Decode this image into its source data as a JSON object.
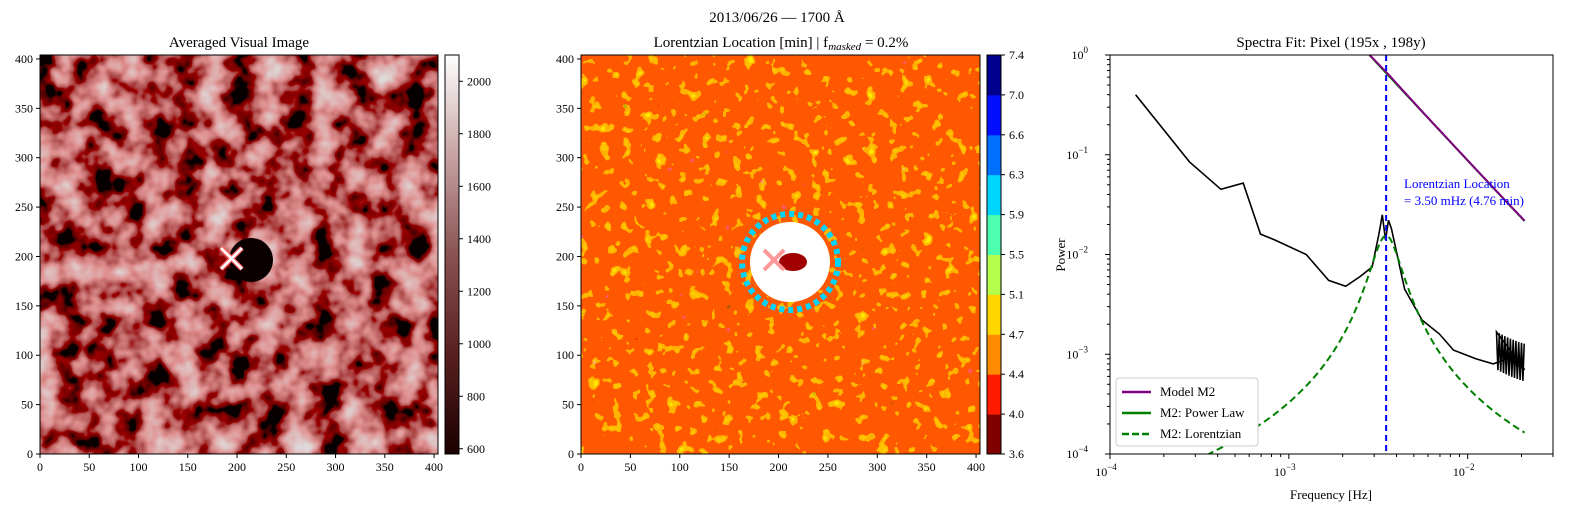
{
  "figure_title": "2013/06/26 — 1700 Å",
  "chart_data": [
    {
      "type": "heatmap",
      "title": "Averaged Visual Image",
      "x_ticks": [
        "0",
        "50",
        "100",
        "150",
        "200",
        "250",
        "300",
        "350",
        "400"
      ],
      "y_ticks": [
        "0",
        "50",
        "100",
        "150",
        "200",
        "250",
        "300",
        "350",
        "400"
      ],
      "xlim": [
        0,
        404
      ],
      "ylim": [
        0,
        404
      ],
      "colorbar": {
        "ticks": [
          "600",
          "800",
          "1000",
          "1200",
          "1400",
          "1600",
          "1800",
          "2000"
        ],
        "range": [
          580,
          2100
        ],
        "colors": [
          "#1a0000",
          "#5a1f1f",
          "#8a5252",
          "#c7a3a3",
          "#ffffff"
        ]
      },
      "marker": {
        "x": 195,
        "y": 198,
        "symbol": "x"
      }
    },
    {
      "type": "heatmap",
      "title_main": "Lorentzian Location [min] | f",
      "title_sub": "masked",
      "title_tail": " = 0.2%",
      "x_ticks": [
        "0",
        "50",
        "100",
        "150",
        "200",
        "250",
        "300",
        "350",
        "400"
      ],
      "y_ticks": [
        "0",
        "50",
        "100",
        "150",
        "200",
        "250",
        "300",
        "350",
        "400"
      ],
      "xlim": [
        0,
        404
      ],
      "ylim": [
        0,
        404
      ],
      "colorbar": {
        "ticks": [
          "3.6",
          "4.0",
          "4.4",
          "4.7",
          "5.1",
          "5.5",
          "5.9",
          "6.3",
          "6.6",
          "7.0",
          "7.4"
        ],
        "colors": [
          "#800000",
          "#ff1a00",
          "#ff8c00",
          "#ffd700",
          "#b4ff4b",
          "#4bffaf",
          "#00d5ff",
          "#0070ff",
          "#0010ff",
          "#00008f"
        ]
      },
      "marker": {
        "x": 195,
        "y": 198,
        "symbol": "x"
      }
    },
    {
      "type": "line",
      "title": "Spectra Fit: Pixel (195x , 198y)",
      "xlabel": "Frequency [Hz]",
      "ylabel": "Power",
      "x_scale": "log",
      "y_scale": "log",
      "xlim": [
        0.0001,
        0.03
      ],
      "ylim": [
        0.0001,
        1.0
      ],
      "x_tick_labels": [
        "10",
        "10",
        "10"
      ],
      "x_tick_exps": [
        "−4",
        "−3",
        "−2"
      ],
      "y_tick_labels": [
        "10",
        "10",
        "10",
        "10",
        "10"
      ],
      "y_tick_exps": [
        "−4",
        "−3",
        "−2",
        "−1",
        "0"
      ],
      "series": [
        {
          "name": "Model M2",
          "color": "#800080",
          "style": "solid"
        },
        {
          "name": "M2: Power Law",
          "color": "#008000",
          "style": "solid"
        },
        {
          "name": "M2: Lorentzian",
          "color": "#008000",
          "style": "dashed"
        }
      ],
      "data_series": {
        "color": "#000000",
        "x": [
          0.000139,
          0.000278,
          0.000417,
          0.000556,
          0.000694,
          0.000833,
          0.00125,
          0.00167,
          0.00208,
          0.0025,
          0.00292,
          0.00319,
          0.00333,
          0.00347,
          0.00361,
          0.00375,
          0.00403,
          0.00444,
          0.00556,
          0.00694,
          0.00833,
          0.0111,
          0.0139,
          0.0167,
          0.0208
        ],
        "y": [
          0.4,
          0.085,
          0.045,
          0.052,
          0.016,
          0.014,
          0.01,
          0.0055,
          0.0048,
          0.006,
          0.0075,
          0.016,
          0.025,
          0.014,
          0.022,
          0.018,
          0.01,
          0.0045,
          0.0022,
          0.0016,
          0.0011,
          0.0009,
          0.0008,
          0.0009,
          0.0007
        ]
      },
      "model": {
        "A": 1.2e-05,
        "n": 1.93,
        "C": 0.0005,
        "L_amp": 0.0155,
        "L_center_log": -2.456,
        "L_width_log": 0.08
      },
      "vline_x": 0.0035,
      "annotation_line1": "Lorentzian Location",
      "annotation_line2": "= 3.50 mHz (4.76 min)",
      "legend_position": "lower-left"
    }
  ]
}
